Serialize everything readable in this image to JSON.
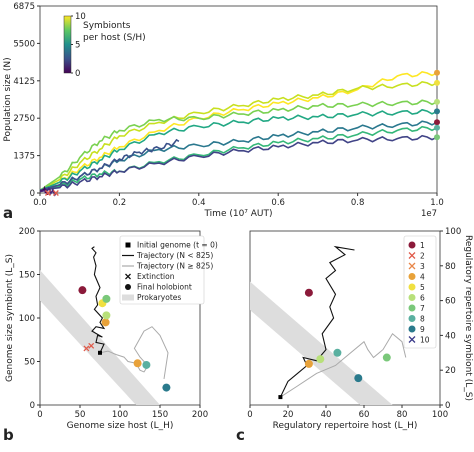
{
  "chart_data": [
    {
      "panel": "a",
      "type": "line",
      "xlabel": "Time (10⁷ AUT)",
      "ylabel": "Population size (N)",
      "x_multiplier_label": "1e7",
      "xlim": [
        0,
        1.0
      ],
      "ylim": [
        0,
        6875
      ],
      "xticks": [
        "0.0",
        "0.2",
        "0.4",
        "0.6",
        "0.8",
        "1.0"
      ],
      "yticks": [
        "0",
        "1375",
        "2750",
        "4125",
        "5500",
        "6875"
      ],
      "colorbar": {
        "label_line1": "Symbionts",
        "label_line2": "per host (S/H)",
        "ticks": [
          "0",
          "5",
          "10"
        ],
        "range": [
          0,
          10
        ],
        "colormap": [
          "#440154",
          "#3b528b",
          "#21908d",
          "#5dc863",
          "#fde725"
        ]
      },
      "series": [
        {
          "color": "#fde725",
          "end_marker": "#e8a23a",
          "final": 4420,
          "x": [
            0,
            0.05,
            0.1,
            0.15,
            0.2,
            0.3,
            0.4,
            0.5,
            0.6,
            0.7,
            0.8,
            0.9,
            1.0
          ],
          "y": [
            100,
            400,
            900,
            1300,
            1700,
            2300,
            2750,
            3050,
            3300,
            3500,
            3800,
            4300,
            4420
          ]
        },
        {
          "color": "#c8e020",
          "end_marker": "#f0e040",
          "final": 4050,
          "x": [
            0,
            0.05,
            0.1,
            0.15,
            0.2,
            0.3,
            0.4,
            0.5,
            0.6,
            0.7,
            0.8,
            0.9,
            1.0
          ],
          "y": [
            100,
            500,
            1100,
            1600,
            2100,
            2600,
            2950,
            3200,
            3450,
            3600,
            3850,
            3950,
            4050
          ]
        },
        {
          "color": "#7ad151",
          "end_marker": "#b8e07a",
          "final": 3350,
          "x": [
            0,
            0.05,
            0.1,
            0.15,
            0.2,
            0.3,
            0.4,
            0.5,
            0.6,
            0.7,
            0.8,
            0.9,
            1.0
          ],
          "y": [
            100,
            600,
            1300,
            1900,
            2300,
            2700,
            2750,
            2900,
            3050,
            3200,
            3250,
            3300,
            3350
          ]
        },
        {
          "color": "#22a884",
          "end_marker": "#2a7a8c",
          "final": 3000,
          "x": [
            0,
            0.05,
            0.1,
            0.15,
            0.2,
            0.3,
            0.4,
            0.5,
            0.6,
            0.7,
            0.8,
            0.9,
            1.0
          ],
          "y": [
            100,
            400,
            800,
            1200,
            1600,
            2200,
            2450,
            2600,
            2750,
            2800,
            2900,
            2950,
            3000
          ]
        },
        {
          "color": "#2a788e",
          "end_marker": "#8b1a3a",
          "final": 2600,
          "x": [
            0,
            0.05,
            0.1,
            0.15,
            0.2,
            0.3,
            0.4,
            0.5,
            0.6,
            0.7,
            0.8,
            0.9,
            1.0
          ],
          "y": [
            100,
            300,
            600,
            900,
            1200,
            1600,
            1750,
            1900,
            2100,
            2250,
            2400,
            2500,
            2600
          ]
        },
        {
          "color": "#35b779",
          "end_marker": "#5ab0a0",
          "final": 2400,
          "x": [
            0,
            0.05,
            0.1,
            0.15,
            0.2,
            0.3,
            0.4,
            0.5,
            0.6,
            0.7,
            0.8,
            0.9,
            1.0
          ],
          "y": [
            100,
            250,
            500,
            700,
            800,
            1150,
            1400,
            1650,
            1850,
            2000,
            2150,
            2300,
            2400
          ]
        },
        {
          "color": "#414487",
          "end_marker": "#7ac87a",
          "final": 2050,
          "x": [
            0,
            0.05,
            0.1,
            0.15,
            0.2,
            0.3,
            0.4,
            0.5,
            0.6,
            0.7,
            0.8,
            0.9,
            1.0
          ],
          "y": [
            100,
            200,
            400,
            600,
            800,
            1100,
            1350,
            1550,
            1700,
            1850,
            1950,
            2000,
            2050
          ]
        },
        {
          "color": "#3b528b",
          "final": 1900,
          "x": [
            0,
            0.05,
            0.1,
            0.15,
            0.2,
            0.25,
            0.3,
            0.35
          ],
          "y": [
            100,
            300,
            600,
            900,
            1250,
            1500,
            1650,
            1900
          ]
        },
        {
          "color": "#440154",
          "extinct": true,
          "x": [
            0,
            0.01,
            0.02
          ],
          "y": [
            60,
            120,
            0
          ]
        },
        {
          "color": "#482878",
          "extinct": true,
          "x": [
            0,
            0.02,
            0.04
          ],
          "y": [
            50,
            110,
            0
          ]
        }
      ],
      "extinction_color": "#e05a4a",
      "extinctions_x": [
        0.02,
        0.04
      ]
    },
    {
      "panel": "b",
      "type": "scatter",
      "xlabel": "Genome size host (L_H)",
      "ylabel": "Genome size symbiont (L_S)",
      "xlim": [
        0,
        200
      ],
      "ylim": [
        0,
        200
      ],
      "xticks": [
        "0",
        "50",
        "100",
        "150",
        "200"
      ],
      "yticks": [
        "0",
        "50",
        "100",
        "150",
        "200"
      ],
      "legend": {
        "placement": "top-right",
        "entries": [
          {
            "symbol": "square",
            "label": "Initial genome (t = 0)"
          },
          {
            "symbol": "line-black",
            "label": "Trajectory (N < 825)"
          },
          {
            "symbol": "line-grey",
            "label": "Trajectory (N ≥ 825)"
          },
          {
            "symbol": "x",
            "label": "Extinction"
          },
          {
            "symbol": "dot",
            "label": "Final holobiont"
          },
          {
            "symbol": "band",
            "label": "Prokaryotes"
          }
        ]
      },
      "initial": [
        75,
        60
      ],
      "prokaryote_band": {
        "lower": [
          [
            0,
            120
          ],
          [
            120,
            0
          ],
          [
            150,
            0
          ],
          [
            0,
            155
          ]
        ]
      },
      "black_traj": {
        "x": [
          75,
          80,
          70,
          72,
          78,
          65,
          70,
          80,
          75,
          78,
          68,
          72,
          70,
          75,
          68,
          70,
          67,
          70,
          65,
          68
        ],
        "y": [
          60,
          70,
          72,
          80,
          78,
          85,
          90,
          88,
          95,
          100,
          110,
          115,
          125,
          135,
          150,
          160,
          170,
          175,
          180,
          182
        ]
      },
      "grey_traj": {
        "x": [
          75,
          85,
          95,
          105,
          110,
          120,
          125,
          130,
          135,
          125,
          118,
          130,
          140,
          150,
          160,
          155
        ],
        "y": [
          60,
          62,
          58,
          55,
          50,
          48,
          40,
          38,
          45,
          55,
          65,
          85,
          90,
          80,
          60,
          30
        ]
      },
      "final_points": [
        {
          "id": "1",
          "x": 53,
          "y": 132,
          "color": "#8b1a3a"
        },
        {
          "id": "4",
          "x": 82,
          "y": 95,
          "color": "#e8a23a"
        },
        {
          "id": "5",
          "x": 78,
          "y": 117,
          "color": "#f0e040"
        },
        {
          "id": "6",
          "x": 83,
          "y": 103,
          "color": "#b8e07a"
        },
        {
          "id": "7",
          "x": 83,
          "y": 122,
          "color": "#7ac87a"
        },
        {
          "id": "8",
          "x": 133,
          "y": 46,
          "color": "#5ab0a0"
        },
        {
          "id": "9",
          "x": 158,
          "y": 20,
          "color": "#2a7a8c"
        },
        {
          "id": "extra",
          "x": 122,
          "y": 48,
          "color": "#e8a23a"
        }
      ],
      "extinct_points": [
        [
          58,
          65
        ],
        [
          64,
          68
        ]
      ]
    },
    {
      "panel": "c",
      "type": "scatter",
      "xlabel": "Regulatory repertoire host (L_H)",
      "ylabel": "Regulatory repertoire symbiont (L_S)",
      "xlim": [
        0,
        100
      ],
      "ylim": [
        0,
        110
      ],
      "xticks": [
        "0",
        "20",
        "40",
        "60",
        "80",
        "100"
      ],
      "yticks": [
        "0",
        "20",
        "40",
        "60",
        "80",
        "100"
      ],
      "legend": {
        "placement": "top-right",
        "entries": [
          {
            "label": "1",
            "color": "#8b1a3a",
            "symbol": "dot"
          },
          {
            "label": "2",
            "color": "#e05a4a",
            "symbol": "x"
          },
          {
            "label": "3",
            "color": "#e8874a",
            "symbol": "x"
          },
          {
            "label": "4",
            "color": "#e8a23a",
            "symbol": "dot"
          },
          {
            "label": "5",
            "color": "#f0e040",
            "symbol": "dot"
          },
          {
            "label": "6",
            "color": "#b8e07a",
            "symbol": "dot"
          },
          {
            "label": "7",
            "color": "#7ac87a",
            "symbol": "dot"
          },
          {
            "label": "8",
            "color": "#5ab0a0",
            "symbol": "dot"
          },
          {
            "label": "9",
            "color": "#2a7a8c",
            "symbol": "dot"
          },
          {
            "label": "10",
            "color": "#3b3b8a",
            "symbol": "x"
          }
        ]
      },
      "initial": [
        16,
        5
      ],
      "black_traj": {
        "x": [
          16,
          20,
          25,
          30,
          28,
          35,
          40,
          38,
          44,
          42,
          45,
          40,
          45,
          42,
          50,
          45,
          55
        ],
        "y": [
          5,
          15,
          20,
          25,
          30,
          28,
          35,
          45,
          55,
          62,
          70,
          80,
          85,
          90,
          95,
          100,
          98
        ]
      },
      "grey_traj": {
        "x": [
          16,
          25,
          35,
          45,
          50,
          60,
          62,
          65,
          70,
          75,
          80,
          82
        ],
        "y": [
          5,
          12,
          20,
          25,
          30,
          40,
          35,
          30,
          35,
          45,
          40,
          30
        ]
      },
      "final_points": [
        {
          "id": "1",
          "x": 31,
          "y": 71,
          "color": "#8b1a3a"
        },
        {
          "id": "4",
          "x": 31,
          "y": 26,
          "color": "#e8a23a"
        },
        {
          "id": "6",
          "x": 37,
          "y": 29,
          "color": "#b8e07a"
        },
        {
          "id": "7",
          "x": 72,
          "y": 30,
          "color": "#7ac87a"
        },
        {
          "id": "8",
          "x": 46,
          "y": 33,
          "color": "#5ab0a0"
        },
        {
          "id": "9",
          "x": 57,
          "y": 17,
          "color": "#2a7a8c"
        }
      ]
    }
  ],
  "panel_letters": {
    "a": "a",
    "b": "b",
    "c": "c"
  }
}
